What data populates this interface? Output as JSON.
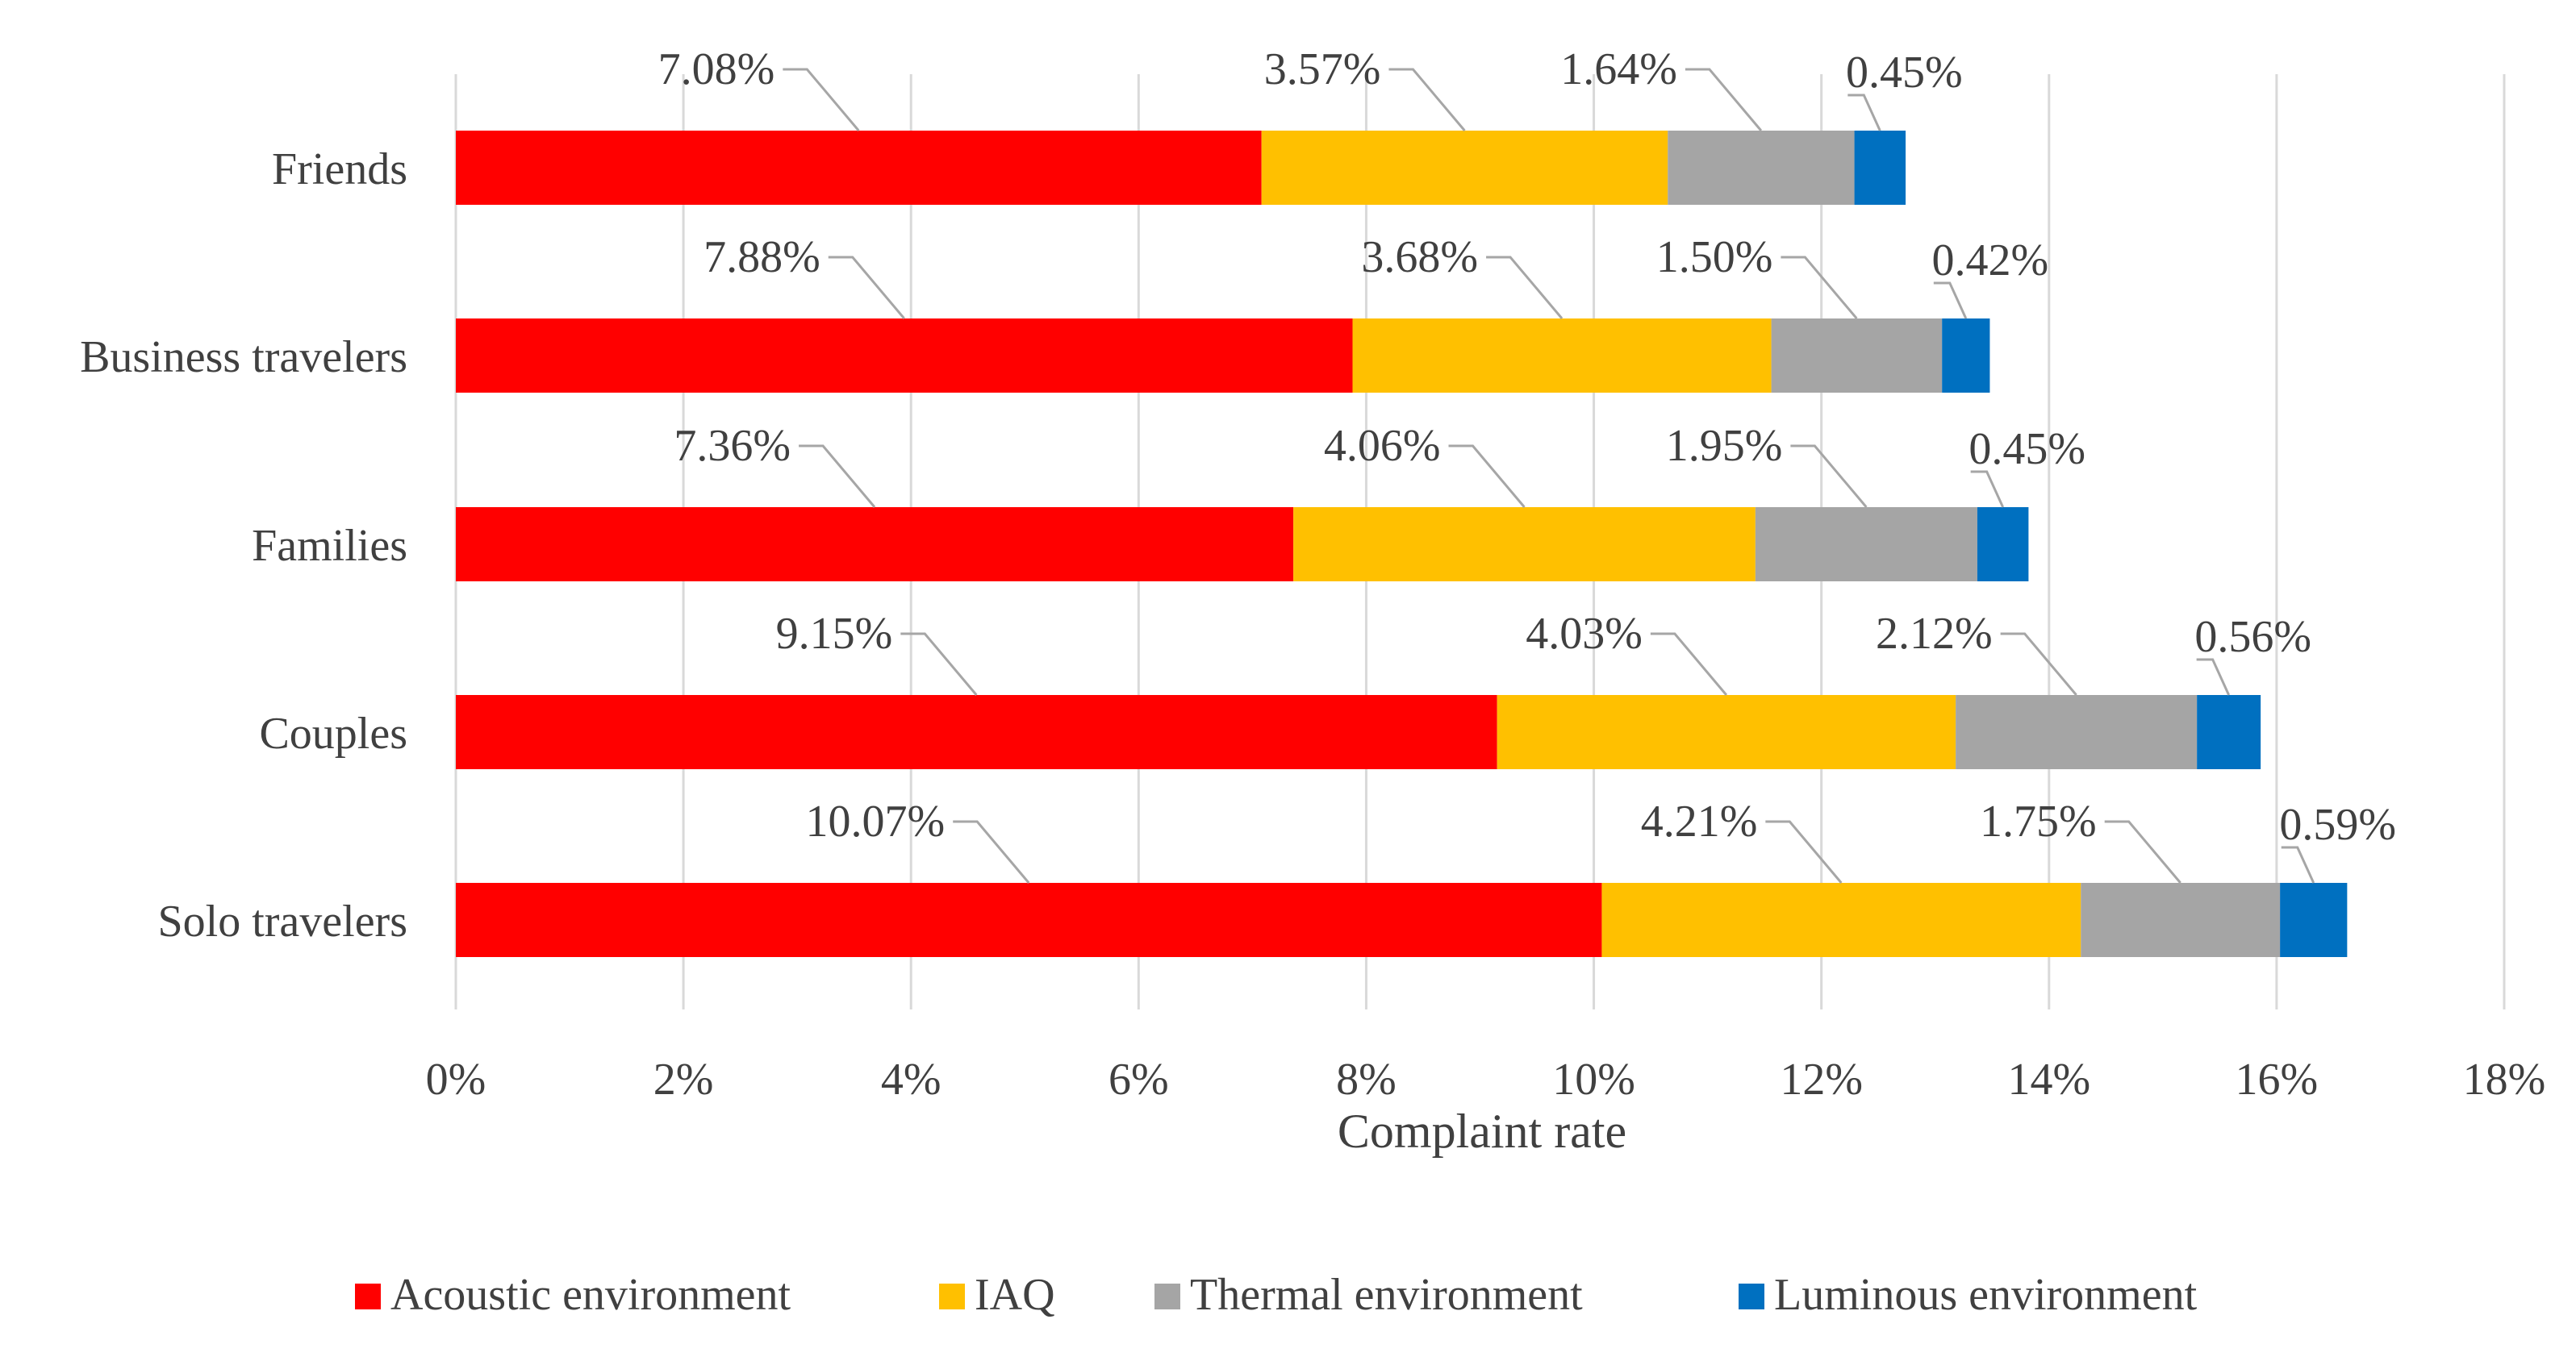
{
  "chart_data": {
    "type": "bar",
    "orientation": "horizontal",
    "stacked": true,
    "title": "",
    "xlabel": "Complaint rate",
    "ylabel": "",
    "xlim": [
      0,
      18
    ],
    "x_ticks": [
      "0%",
      "2%",
      "4%",
      "6%",
      "8%",
      "10%",
      "12%",
      "14%",
      "16%",
      "18%"
    ],
    "grid": true,
    "legend_position": "bottom",
    "categories": [
      "Friends",
      "Business travelers",
      "Families",
      "Couples",
      "Solo travelers"
    ],
    "series": [
      {
        "name": "Acoustic environment",
        "color": "#ff0000",
        "values": [
          7.08,
          7.88,
          7.36,
          9.15,
          10.07
        ],
        "labels": [
          "7.08%",
          "7.88%",
          "7.36%",
          "9.15%",
          "10.07%"
        ]
      },
      {
        "name": "IAQ",
        "color": "#ffc000",
        "values": [
          3.57,
          3.68,
          4.06,
          4.03,
          4.21
        ],
        "labels": [
          "3.57%",
          "3.68%",
          "4.06%",
          "4.03%",
          "4.21%"
        ]
      },
      {
        "name": "Thermal environment",
        "color": "#a5a5a5",
        "values": [
          1.64,
          1.5,
          1.95,
          2.12,
          1.75
        ],
        "labels": [
          "1.64%",
          "1.50%",
          "1.95%",
          "2.12%",
          "1.75%"
        ]
      },
      {
        "name": "Luminous environment",
        "color": "#0070c0",
        "values": [
          0.45,
          0.42,
          0.45,
          0.56,
          0.59
        ],
        "labels": [
          "0.45%",
          "0.42%",
          "0.45%",
          "0.56%",
          "0.59%"
        ]
      }
    ]
  }
}
